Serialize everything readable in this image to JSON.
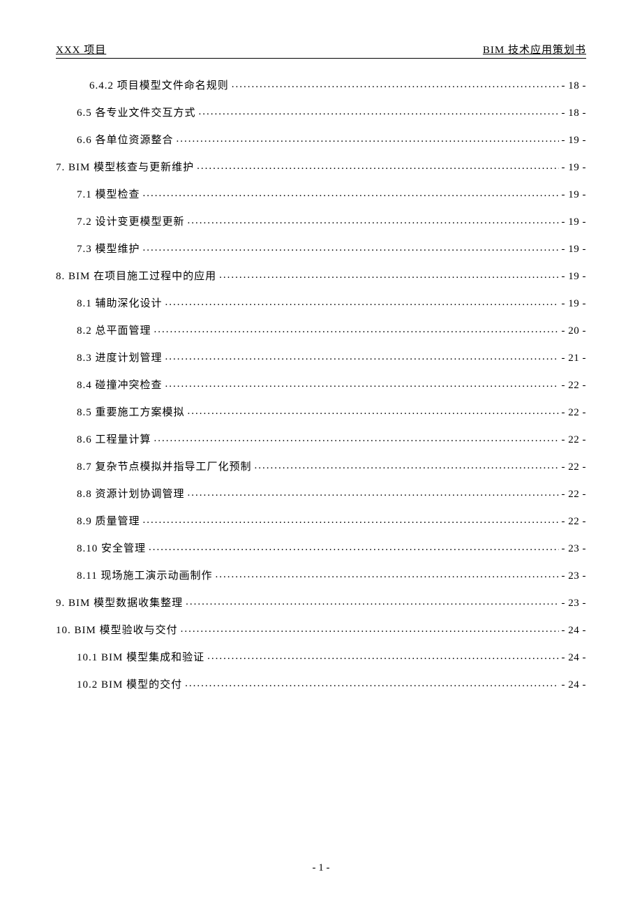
{
  "header": {
    "left": "XXX 项目",
    "right": "BIM 技术应用策划书"
  },
  "footer": {
    "pageNumber": "- 1 -"
  },
  "dots": "............................................................................................................................................................................",
  "toc": [
    {
      "level": 3,
      "title": "6.4.2 项目模型文件命名规则",
      "page": "- 18 -"
    },
    {
      "level": 2,
      "title": "6.5 各专业文件交互方式",
      "page": "- 18 -"
    },
    {
      "level": 2,
      "title": "6.6 各单位资源整合",
      "page": "- 19 -"
    },
    {
      "level": 1,
      "title": "7. BIM 模型核查与更新维护",
      "page": "- 19 -"
    },
    {
      "level": 2,
      "title": "7.1 模型检查",
      "page": "- 19 -"
    },
    {
      "level": 2,
      "title": "7.2 设计变更模型更新",
      "page": "- 19 -"
    },
    {
      "level": 2,
      "title": "7.3 模型维护",
      "page": "- 19 -"
    },
    {
      "level": 1,
      "title": "8. BIM 在项目施工过程中的应用",
      "page": "- 19 -"
    },
    {
      "level": 2,
      "title": "8.1 辅助深化设计",
      "page": "- 19 -"
    },
    {
      "level": 2,
      "title": "8.2 总平面管理",
      "page": "- 20 -"
    },
    {
      "level": 2,
      "title": "8.3 进度计划管理",
      "page": "- 21 -"
    },
    {
      "level": 2,
      "title": "8.4 碰撞冲突检查",
      "page": "- 22 -"
    },
    {
      "level": 2,
      "title": "8.5 重要施工方案模拟",
      "page": "- 22 -"
    },
    {
      "level": 2,
      "title": "8.6 工程量计算",
      "page": "- 22 -"
    },
    {
      "level": 2,
      "title": "8.7 复杂节点模拟并指导工厂化预制",
      "page": "- 22 -"
    },
    {
      "level": 2,
      "title": "8.8 资源计划协调管理",
      "page": "- 22 -"
    },
    {
      "level": 2,
      "title": "8.9 质量管理",
      "page": "- 22 -"
    },
    {
      "level": 2,
      "title": "8.10 安全管理",
      "page": "- 23 -"
    },
    {
      "level": 2,
      "title": "8.11 现场施工演示动画制作",
      "page": "- 23 -"
    },
    {
      "level": 1,
      "title": "9. BIM 模型数据收集整理",
      "page": "- 23 -"
    },
    {
      "level": 1,
      "title": "10. BIM 模型验收与交付",
      "page": "- 24 -"
    },
    {
      "level": 2,
      "title": "10.1 BIM 模型集成和验证",
      "page": "- 24 -"
    },
    {
      "level": 2,
      "title": "10.2 BIM 模型的交付",
      "page": "- 24 -"
    }
  ]
}
